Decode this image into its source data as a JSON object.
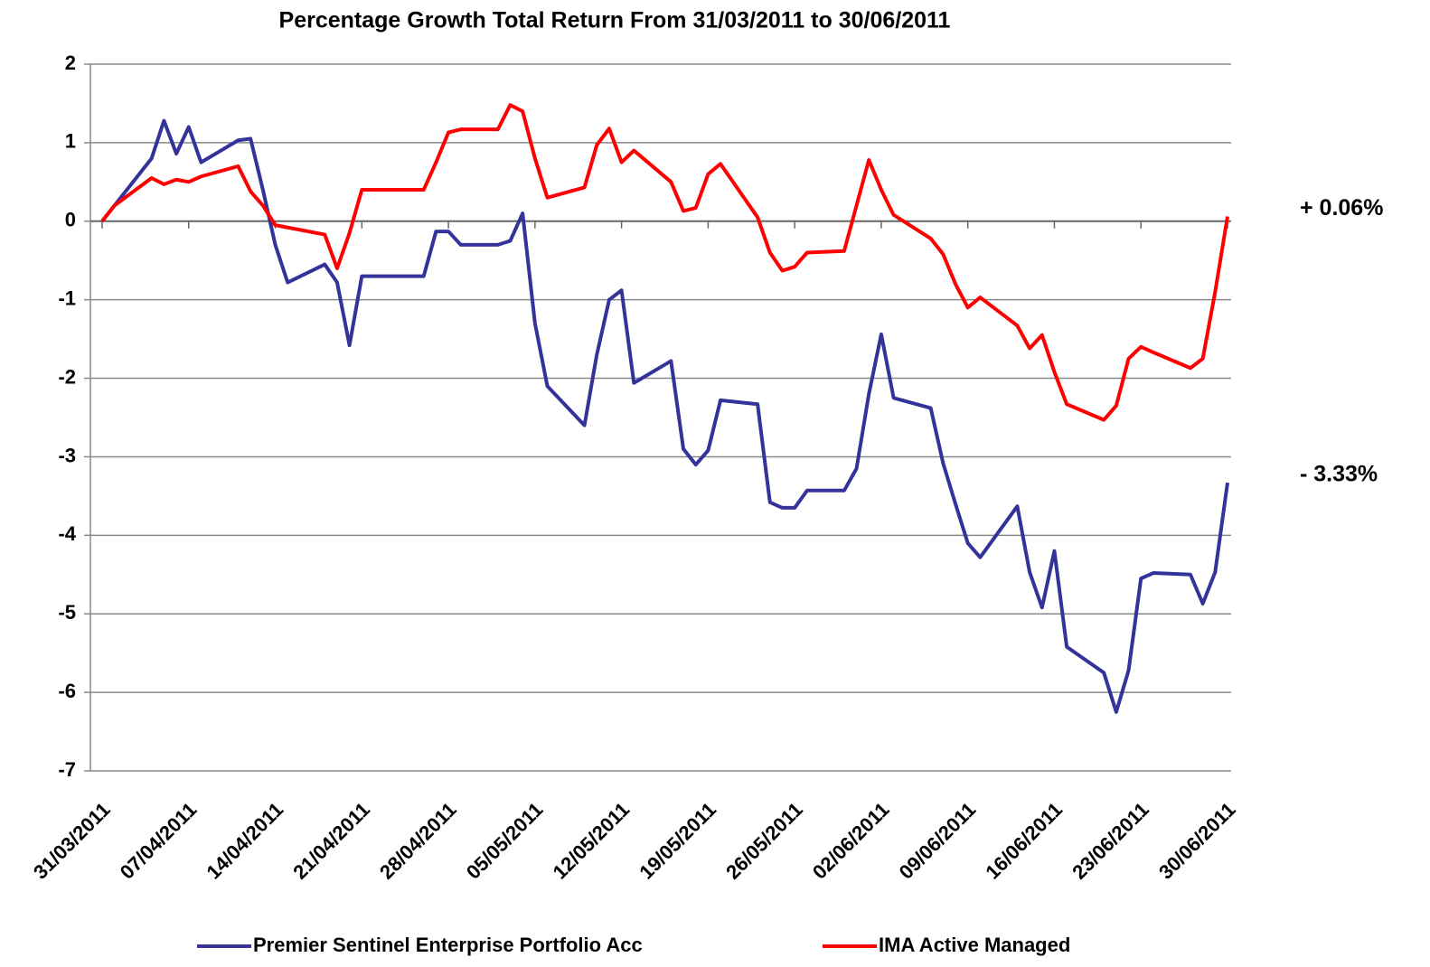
{
  "chart_data": {
    "type": "line",
    "title": "Percentage Growth Total Return From 31/03/2011 to 30/06/2011",
    "x": [
      "31/03/2011",
      "01/04/2011",
      "04/04/2011",
      "05/04/2011",
      "06/04/2011",
      "07/04/2011",
      "08/04/2011",
      "11/04/2011",
      "12/04/2011",
      "13/04/2011",
      "14/04/2011",
      "15/04/2011",
      "18/04/2011",
      "19/04/2011",
      "20/04/2011",
      "21/04/2011",
      "26/04/2011",
      "27/04/2011",
      "28/04/2011",
      "29/04/2011",
      "02/05/2011",
      "03/05/2011",
      "04/05/2011",
      "05/05/2011",
      "06/05/2011",
      "09/05/2011",
      "10/05/2011",
      "11/05/2011",
      "12/05/2011",
      "13/05/2011",
      "16/05/2011",
      "17/05/2011",
      "18/05/2011",
      "19/05/2011",
      "20/05/2011",
      "23/05/2011",
      "24/05/2011",
      "25/05/2011",
      "26/05/2011",
      "27/05/2011",
      "30/05/2011",
      "31/05/2011",
      "01/06/2011",
      "02/06/2011",
      "03/06/2011",
      "06/06/2011",
      "07/06/2011",
      "08/06/2011",
      "09/06/2011",
      "10/06/2011",
      "13/06/2011",
      "14/06/2011",
      "15/06/2011",
      "16/06/2011",
      "17/06/2011",
      "20/06/2011",
      "21/06/2011",
      "22/06/2011",
      "23/06/2011",
      "24/06/2011",
      "27/06/2011",
      "28/06/2011",
      "29/06/2011",
      "30/06/2011"
    ],
    "series": [
      {
        "name": "Premier Sentinel Enterprise Portfolio Acc",
        "color": "#333399",
        "values": [
          0,
          0.2,
          0.8,
          1.28,
          0.86,
          1.2,
          0.75,
          1.03,
          1.05,
          0.4,
          -0.3,
          -0.78,
          -0.55,
          -0.78,
          -1.58,
          -0.7,
          -0.7,
          -0.13,
          -0.13,
          -0.3,
          -0.3,
          -0.25,
          0.1,
          -1.3,
          -2.1,
          -2.6,
          -1.7,
          -1.0,
          -0.88,
          -2.06,
          -1.78,
          -2.9,
          -3.1,
          -2.92,
          -2.28,
          -2.33,
          -3.58,
          -3.65,
          -3.65,
          -3.43,
          -3.43,
          -3.15,
          -2.2,
          -1.44,
          -2.25,
          -2.38,
          -3.08,
          -3.6,
          -4.1,
          -4.28,
          -3.63,
          -4.47,
          -4.92,
          -4.2,
          -5.42,
          -5.75,
          -6.25,
          -5.72,
          -4.55,
          -4.48,
          -4.5,
          -4.87,
          -4.47,
          -3.33
        ]
      },
      {
        "name": "IMA Active Managed",
        "color": "#ff0000",
        "values": [
          0,
          0.2,
          0.55,
          0.47,
          0.53,
          0.5,
          0.57,
          0.7,
          0.38,
          0.2,
          -0.05,
          -0.08,
          -0.17,
          -0.6,
          -0.15,
          0.4,
          0.4,
          0.75,
          1.13,
          1.17,
          1.17,
          1.48,
          1.4,
          0.8,
          0.3,
          0.43,
          0.97,
          1.18,
          0.75,
          0.9,
          0.5,
          0.13,
          0.17,
          0.6,
          0.73,
          0.05,
          -0.4,
          -0.63,
          -0.58,
          -0.4,
          -0.38,
          0.2,
          0.78,
          0.4,
          0.08,
          -0.22,
          -0.42,
          -0.8,
          -1.1,
          -0.97,
          -1.33,
          -1.62,
          -1.45,
          -1.92,
          -2.33,
          -2.53,
          -2.35,
          -1.75,
          -1.6,
          -1.67,
          -1.87,
          -1.75,
          -0.9,
          0.06
        ]
      }
    ],
    "annotations": [
      {
        "text": "- 3.33%",
        "color": "#333399"
      },
      {
        "text": "+ 0.06%",
        "color": "#ff0000"
      }
    ],
    "xlim": [
      "31/03/2011",
      "30/06/2011"
    ],
    "xticks": [
      "31/03/2011",
      "07/04/2011",
      "14/04/2011",
      "21/04/2011",
      "28/04/2011",
      "05/05/2011",
      "12/05/2011",
      "19/05/2011",
      "26/05/2011",
      "02/06/2011",
      "09/06/2011",
      "16/06/2011",
      "23/06/2011",
      "30/06/2011"
    ],
    "ylim": [
      -7,
      2
    ],
    "yticks": [
      -7,
      -6,
      -5,
      -4,
      -3,
      -2,
      -1,
      0,
      1,
      2
    ],
    "grid": true,
    "legend": "bottom"
  }
}
